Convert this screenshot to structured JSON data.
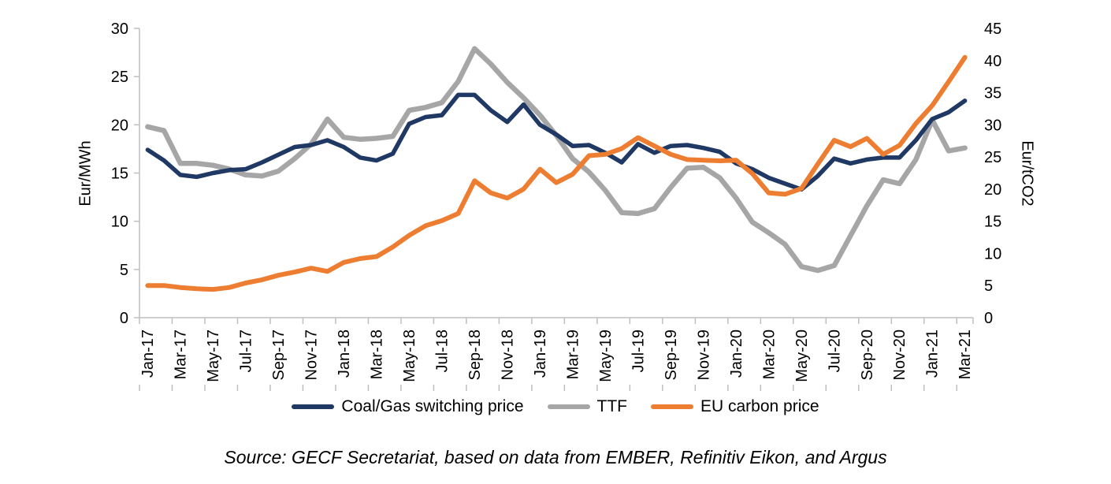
{
  "figure": {
    "source_text": "Source: GECF Secretariat, based on data from EMBER, Refinitiv Eikon, and Argus"
  },
  "chart_data": {
    "type": "line",
    "grid": false,
    "legend_position": "bottom",
    "x": [
      "Jan-17",
      "Feb-17",
      "Mar-17",
      "Apr-17",
      "May-17",
      "Jun-17",
      "Jul-17",
      "Aug-17",
      "Sep-17",
      "Oct-17",
      "Nov-17",
      "Dec-17",
      "Jan-18",
      "Feb-18",
      "Mar-18",
      "Apr-18",
      "May-18",
      "Jun-18",
      "Jul-18",
      "Aug-18",
      "Sep-18",
      "Oct-18",
      "Nov-18",
      "Dec-18",
      "Jan-19",
      "Feb-19",
      "Mar-19",
      "Apr-19",
      "May-19",
      "Jun-19",
      "Jul-19",
      "Aug-19",
      "Sep-19",
      "Oct-19",
      "Nov-19",
      "Dec-19",
      "Jan-20",
      "Feb-20",
      "Mar-20",
      "Apr-20",
      "May-20",
      "Jun-20",
      "Jul-20",
      "Aug-20",
      "Sep-20",
      "Oct-20",
      "Nov-20",
      "Dec-20",
      "Jan-21",
      "Feb-21",
      "Mar-21"
    ],
    "x_tick_labels": [
      "Jan-17",
      "Mar-17",
      "May-17",
      "Jul-17",
      "Sep-17",
      "Nov-17",
      "Jan-18",
      "Mar-18",
      "May-18",
      "Jul-18",
      "Sep-18",
      "Nov-18",
      "Jan-19",
      "Mar-19",
      "May-19",
      "Jul-19",
      "Sep-19",
      "Nov-19",
      "Jan-20",
      "Mar-20",
      "May-20",
      "Jul-20",
      "Sep-20",
      "Nov-20",
      "Jan-21",
      "Mar-21"
    ],
    "x_label_rotation": -90,
    "left_axis": {
      "title": "Eur/MWh",
      "min": 0,
      "max": 30,
      "step": 5,
      "ticks": [
        0,
        5,
        10,
        15,
        20,
        25,
        30
      ]
    },
    "right_axis": {
      "title": "Eur/tCO2",
      "min": 0,
      "max": 45,
      "step": 5,
      "ticks": [
        0,
        5,
        10,
        15,
        20,
        25,
        30,
        35,
        40,
        45
      ]
    },
    "axis_color": "#BFBFBF",
    "series": [
      {
        "name": "Coal/Gas switching price",
        "axis": "left",
        "color": "#1F3864",
        "values": [
          17.4,
          16.3,
          14.8,
          14.6,
          15.0,
          15.3,
          15.4,
          16.1,
          16.9,
          17.7,
          17.9,
          18.4,
          17.7,
          16.6,
          16.3,
          17.0,
          20.1,
          20.8,
          21.0,
          23.1,
          23.1,
          21.5,
          20.3,
          22.1,
          20.0,
          19.0,
          17.8,
          17.9,
          17.1,
          16.1,
          18.0,
          17.1,
          17.8,
          17.9,
          17.6,
          17.2,
          16.0,
          15.4,
          14.5,
          13.9,
          13.3,
          14.7,
          16.5,
          16.0,
          16.4,
          16.6,
          16.6,
          18.4,
          20.6,
          21.3,
          22.5
        ]
      },
      {
        "name": "TTF",
        "axis": "left",
        "color": "#A6A6A6",
        "values": [
          19.8,
          19.4,
          16.0,
          16.0,
          15.8,
          15.4,
          14.8,
          14.7,
          15.2,
          16.5,
          18.0,
          20.6,
          18.7,
          18.5,
          18.6,
          18.8,
          21.5,
          21.8,
          22.3,
          24.5,
          27.9,
          26.3,
          24.4,
          22.8,
          21.0,
          18.9,
          16.5,
          15.1,
          13.2,
          10.9,
          10.8,
          11.3,
          13.5,
          15.5,
          15.6,
          14.5,
          12.4,
          9.9,
          8.8,
          7.6,
          5.3,
          4.9,
          5.4,
          8.5,
          11.6,
          14.3,
          13.9,
          16.4,
          20.5,
          17.3,
          17.6
        ]
      },
      {
        "name": "EU carbon price",
        "axis": "right",
        "color": "#ED7D31",
        "values": [
          5.0,
          5.0,
          4.7,
          4.5,
          4.4,
          4.7,
          5.4,
          5.9,
          6.6,
          7.1,
          7.7,
          7.2,
          8.6,
          9.2,
          9.5,
          11.0,
          12.8,
          14.3,
          15.1,
          16.2,
          21.3,
          19.4,
          18.6,
          20.0,
          23.1,
          21.0,
          22.3,
          25.2,
          25.4,
          26.3,
          28.0,
          26.7,
          25.4,
          24.6,
          24.5,
          24.4,
          24.5,
          22.4,
          19.4,
          19.2,
          20.1,
          23.9,
          27.6,
          26.6,
          27.9,
          25.4,
          26.8,
          30.2,
          33.0,
          36.7,
          40.5
        ]
      }
    ]
  }
}
